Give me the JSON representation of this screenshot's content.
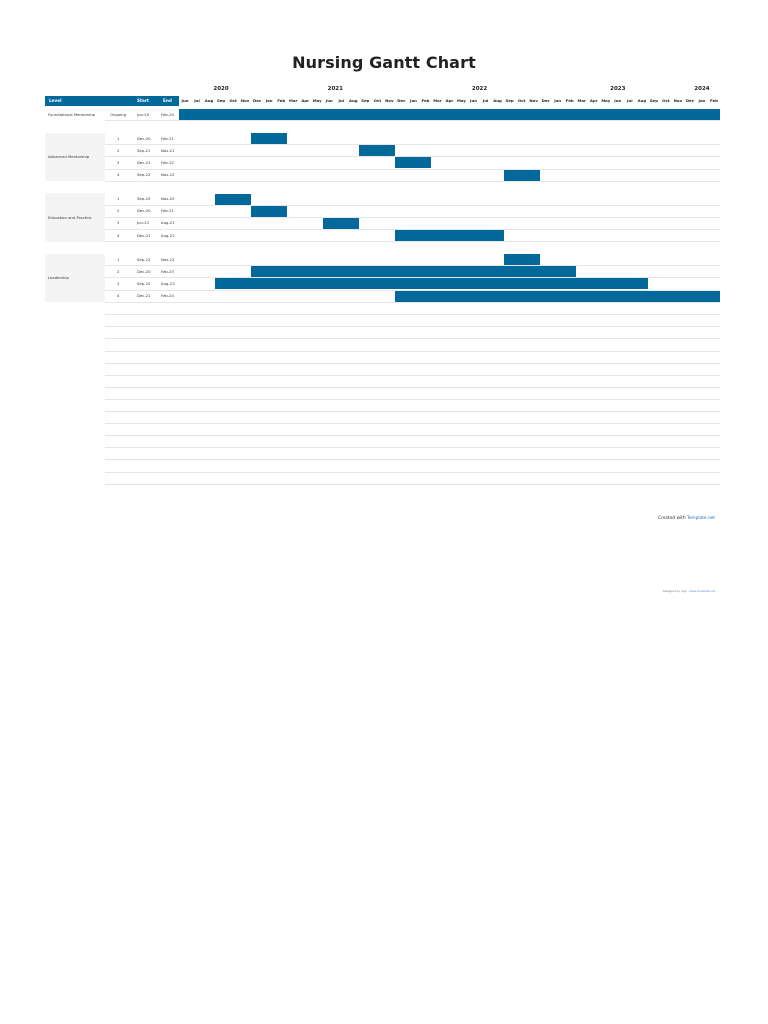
{
  "title": "Nursing Gantt Chart",
  "colors": {
    "bar": "#03699a",
    "header": "#03699a",
    "group_bg": "#f4f4f4",
    "gridline": "#e6e6e6"
  },
  "header": {
    "level": "Level",
    "start": "Start",
    "end": "End"
  },
  "years": [
    {
      "label": "2020",
      "month_index": 3.5
    },
    {
      "label": "2021",
      "month_index": 13
    },
    {
      "label": "2022",
      "month_index": 25
    },
    {
      "label": "2023",
      "month_index": 36.5
    },
    {
      "label": "2024",
      "month_index": 43.5
    }
  ],
  "months": [
    "Jun",
    "Jul",
    "Aug",
    "Sep",
    "Oct",
    "Nov",
    "Dec",
    "Jan",
    "Feb",
    "Mar",
    "Apr",
    "May",
    "Jun",
    "Jul",
    "Aug",
    "Sep",
    "Oct",
    "Nov",
    "Dec",
    "Jan",
    "Feb",
    "Mar",
    "Apr",
    "May",
    "Jun",
    "Jul",
    "Aug",
    "Sep",
    "Oct",
    "Nov",
    "Dec",
    "Jan",
    "Feb",
    "Mar",
    "Apr",
    "May",
    "Jun",
    "Jul",
    "Aug",
    "Sep",
    "Oct",
    "Nov",
    "Dec",
    "Jan",
    "Feb"
  ],
  "groups": [
    {
      "label": "Foundational Mentorship",
      "tasks": [
        {
          "num": "Ongoing",
          "start": "Jun-20",
          "end": "Feb-24",
          "from": 0,
          "to": 45
        }
      ]
    },
    {
      "label": "Advanced Mentorship",
      "tasks": [
        {
          "num": "1",
          "start": "Dec-20",
          "end": "Feb-21",
          "from": 6,
          "to": 9
        },
        {
          "num": "2",
          "start": "Sep-21",
          "end": "Nov-21",
          "from": 15,
          "to": 18
        },
        {
          "num": "3",
          "start": "Dec-21",
          "end": "Feb-22",
          "from": 18,
          "to": 21
        },
        {
          "num": "4",
          "start": "Sep-22",
          "end": "Nov-22",
          "from": 27,
          "to": 30
        }
      ]
    },
    {
      "label": "Education and Practice",
      "tasks": [
        {
          "num": "1",
          "start": "Sep-20",
          "end": "Nov-20",
          "from": 3,
          "to": 6
        },
        {
          "num": "2",
          "start": "Dec-20",
          "end": "Feb-21",
          "from": 6,
          "to": 9
        },
        {
          "num": "3",
          "start": "Jun-21",
          "end": "Aug-21",
          "from": 12,
          "to": 15
        },
        {
          "num": "4",
          "start": "Dec-21",
          "end": "Aug-22",
          "from": 18,
          "to": 27
        }
      ]
    },
    {
      "label": "Leadership",
      "tasks": [
        {
          "num": "1",
          "start": "Sep-22",
          "end": "Nov-22",
          "from": 27,
          "to": 30
        },
        {
          "num": "2",
          "start": "Dec-20",
          "end": "Feb-23",
          "from": 6,
          "to": 33
        },
        {
          "num": "3",
          "start": "Sep-20",
          "end": "Aug-23",
          "from": 3,
          "to": 39
        },
        {
          "num": "4",
          "start": "Dec-21",
          "end": "Feb-24",
          "from": 18,
          "to": 45
        }
      ]
    }
  ],
  "credit": {
    "prefix": "Created with",
    "link": "Template.net"
  },
  "credit_small": {
    "prefix": "Designed by Yogi -",
    "link": "www.template.net"
  }
}
